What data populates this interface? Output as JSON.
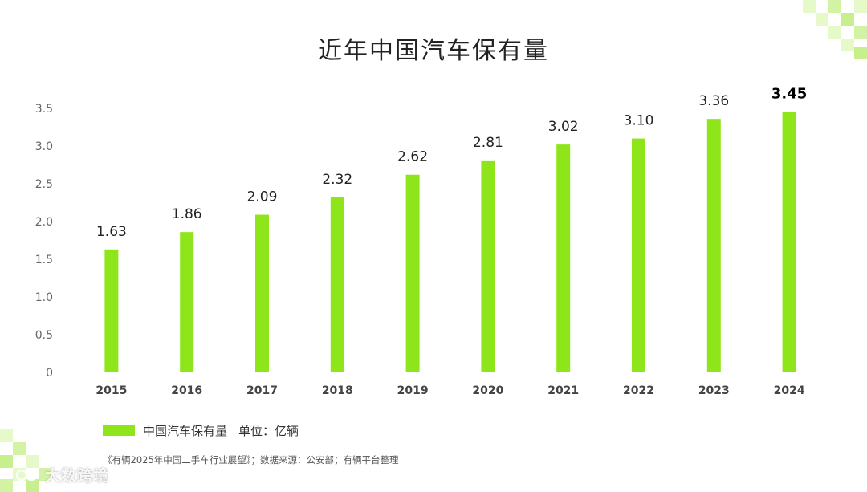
{
  "chart_data": {
    "type": "bar",
    "title": "近年中国汽车保有量",
    "categories": [
      "2015",
      "2016",
      "2017",
      "2018",
      "2019",
      "2020",
      "2021",
      "2022",
      "2023",
      "2024"
    ],
    "series": [
      {
        "name": "中国汽车保有量",
        "values": [
          1.63,
          1.86,
          2.09,
          2.32,
          2.62,
          2.81,
          3.02,
          3.1,
          3.36,
          3.45
        ]
      }
    ],
    "value_labels": [
      "1.63",
      "1.86",
      "2.09",
      "2.32",
      "2.62",
      "2.81",
      "3.02",
      "3.10",
      "3.36",
      "3.45"
    ],
    "highlight_index": 9,
    "ylim": [
      0,
      3.5
    ],
    "yticks": [
      "0",
      "0.5",
      "1.0",
      "1.5",
      "2.0",
      "2.5",
      "3.0",
      "3.5"
    ],
    "ytick_values": [
      0,
      0.5,
      1.0,
      1.5,
      2.0,
      2.5,
      3.0,
      3.5
    ],
    "grid": false,
    "legend_position": "bottom-left",
    "bar_color": "#8ee61a"
  },
  "legend": {
    "series_label": "中国汽车保有量",
    "unit_label": "单位：亿辆"
  },
  "source": "《有辆2025年中国二手车行业展望》；数据来源：公安部；有辆平台整理",
  "watermark": "大数跨境",
  "colors": {
    "bar": "#8ee61a",
    "decor_light": "#e3f8c4",
    "decor_mid": "#c7ef8d"
  }
}
